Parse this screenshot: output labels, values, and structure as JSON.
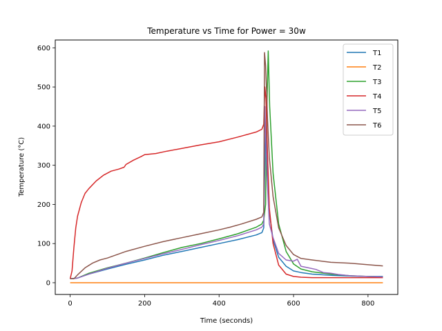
{
  "chart_data": {
    "type": "line",
    "title": "Temperature vs Time for Power = 30w",
    "xlabel": "Time (seconds)",
    "ylabel": "Temperature (°C)",
    "xlim": [
      -40,
      880
    ],
    "ylim": [
      -30,
      620
    ],
    "xticks": [
      0,
      200,
      400,
      600,
      800
    ],
    "yticks": [
      0,
      100,
      200,
      300,
      400,
      500,
      600
    ],
    "grid": false,
    "legend_position": "top-right",
    "series": [
      {
        "name": "T1",
        "color": "#1f77b4",
        "x": [
          0,
          20,
          50,
          100,
          150,
          200,
          250,
          300,
          350,
          400,
          450,
          500,
          515,
          520,
          522,
          525,
          530,
          535,
          545,
          560,
          580,
          600,
          620,
          650,
          700,
          750,
          800,
          840
        ],
        "y": [
          10,
          12,
          22,
          35,
          47,
          58,
          70,
          80,
          90,
          100,
          110,
          122,
          128,
          140,
          260,
          380,
          300,
          180,
          110,
          65,
          42,
          30,
          26,
          22,
          19,
          17,
          16,
          16
        ]
      },
      {
        "name": "T2",
        "color": "#ff7f0e",
        "x": [
          0,
          100,
          200,
          300,
          400,
          500,
          600,
          700,
          800,
          840
        ],
        "y": [
          0,
          0,
          0,
          0,
          0,
          0,
          0,
          0,
          0,
          0
        ]
      },
      {
        "name": "T3",
        "color": "#2ca02c",
        "x": [
          0,
          20,
          50,
          100,
          150,
          200,
          250,
          300,
          350,
          400,
          450,
          500,
          515,
          520,
          525,
          528,
          532,
          536,
          545,
          560,
          580,
          600,
          620,
          650,
          700,
          750,
          800,
          840
        ],
        "y": [
          10,
          12,
          24,
          38,
          50,
          63,
          77,
          90,
          100,
          112,
          125,
          142,
          150,
          160,
          200,
          430,
          592,
          450,
          280,
          150,
          80,
          48,
          35,
          28,
          22,
          18,
          16,
          15
        ]
      },
      {
        "name": "T4",
        "color": "#d62728",
        "x": [
          0,
          5,
          10,
          15,
          20,
          30,
          40,
          50,
          70,
          90,
          110,
          130,
          145,
          150,
          170,
          190,
          200,
          230,
          260,
          300,
          350,
          400,
          450,
          500,
          515,
          520,
          523,
          526,
          530,
          535,
          545,
          560,
          580,
          600,
          620,
          650,
          700,
          750,
          800,
          840
        ],
        "y": [
          10,
          30,
          90,
          140,
          170,
          205,
          228,
          240,
          260,
          275,
          285,
          290,
          295,
          302,
          313,
          322,
          327,
          330,
          336,
          343,
          352,
          360,
          372,
          385,
          392,
          405,
          500,
          470,
          330,
          190,
          100,
          45,
          22,
          16,
          14,
          13,
          13,
          13,
          13,
          13
        ]
      },
      {
        "name": "T5",
        "color": "#9467bd",
        "x": [
          0,
          20,
          50,
          100,
          150,
          200,
          250,
          300,
          350,
          400,
          450,
          500,
          515,
          520,
          523,
          526,
          530,
          535,
          545,
          560,
          580,
          600,
          610,
          620,
          640,
          660,
          680,
          700,
          720,
          750,
          800,
          840
        ],
        "y": [
          10,
          12,
          22,
          37,
          50,
          62,
          74,
          85,
          97,
          108,
          120,
          135,
          142,
          150,
          450,
          360,
          250,
          150,
          115,
          75,
          58,
          55,
          60,
          42,
          38,
          34,
          26,
          24,
          21,
          18,
          16,
          15
        ]
      },
      {
        "name": "T6",
        "color": "#8c564b",
        "x": [
          0,
          10,
          20,
          40,
          60,
          80,
          100,
          150,
          200,
          250,
          300,
          350,
          400,
          430,
          460,
          500,
          515,
          520,
          522,
          525,
          528,
          530,
          535,
          545,
          560,
          580,
          600,
          620,
          650,
          700,
          750,
          800,
          840
        ],
        "y": [
          10,
          10,
          20,
          38,
          50,
          58,
          63,
          80,
          93,
          105,
          115,
          125,
          135,
          142,
          150,
          162,
          168,
          180,
          588,
          555,
          480,
          420,
          320,
          220,
          140,
          95,
          72,
          62,
          58,
          52,
          50,
          46,
          43
        ]
      }
    ]
  }
}
